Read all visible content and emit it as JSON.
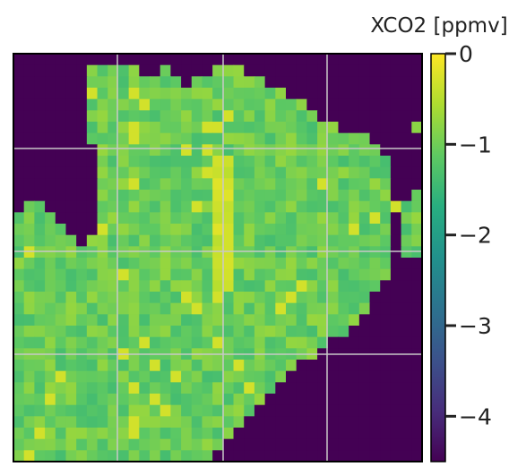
{
  "chart_data": {
    "type": "heatmap",
    "title": "",
    "colorbar_label": "XCO2 [ppmv]",
    "colorbar_ticks": [
      {
        "value": 0,
        "label": "0"
      },
      {
        "value": -1,
        "label": "−1"
      },
      {
        "value": -2,
        "label": "−2"
      },
      {
        "value": -3,
        "label": "−3"
      },
      {
        "value": -4,
        "label": "−4"
      }
    ],
    "vmin": -4.5,
    "vmax": 0,
    "colormap": "viridis",
    "grid": true,
    "grid_rows": 36,
    "grid_cols": 39,
    "masked_value": -4.5,
    "observed_value_range": [
      -1.8,
      -0.1
    ],
    "observed_mask": [
      "000000000000000000000000000000000000000",
      "000000011111001000011100000000000000000",
      "000000011111111101111111000000000000000",
      "000000011111111111111111110000000000000",
      "000000011111111111111111111100000000000",
      "000000011111111111111111111110000000000",
      "000000011111111111111111111111100000001",
      "000000011111111111111111111111111100000",
      "000000001111111111111111111111111110000",
      "000000001111111111111111111111111111000",
      "000000001111111111111111111111111111000",
      "000000001111111111111111111111111111000",
      "000000001111111111111111111111111111001",
      "011000001111111111111111111111111111111",
      "111100001111111111111111111111111111011",
      "111110001111111111111111111111111111011",
      "111111011111111111111111111111111111011",
      "111111111111111111111111111111111111011",
      "111111111111111111111111111111111111000",
      "111111111111111111111111111111111111000",
      "111111111111111111111111111111111110000",
      "111111111111111111111111111111111100000",
      "111111111111111111111111111111111100000",
      "111111111111111111111111111111111000000",
      "111111111111111111111111111111110000000",
      "111111111111111111111111111111000000000",
      "111111111111111111111111111110000000000",
      "111111111111111111111111111000000000000",
      "111111111111111111111111110000000000000",
      "111111111111111111111111100000000000000",
      "111111111111111111111111000000000000000",
      "111111111111111111111110000000000000000",
      "111111111111111111111100000000000000000",
      "111111111111111111111000000000000000000",
      "111111111111111111110000000000000000000",
      "111111111111111111100000000000000000000"
    ]
  },
  "colors": {
    "viridis": [
      "#440154",
      "#472d7b",
      "#3b528b",
      "#2c728e",
      "#21918c",
      "#28ae80",
      "#5ec962",
      "#addc30",
      "#fde725"
    ],
    "gridline": "#c8c8c8",
    "frame": "#000000",
    "masked": "#440154"
  }
}
